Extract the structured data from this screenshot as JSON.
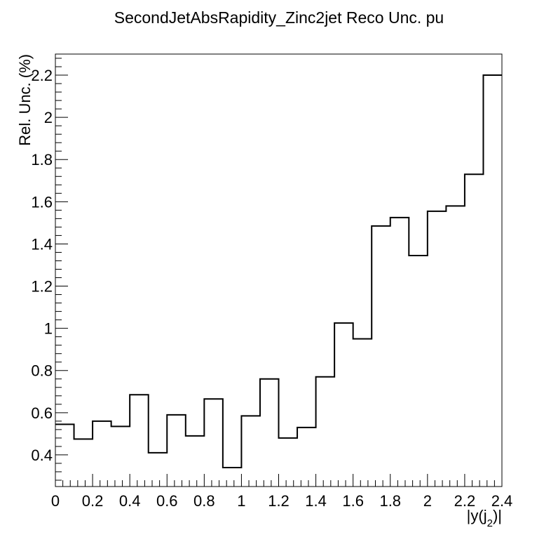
{
  "chart_data": {
    "type": "line",
    "title": "SecondJetAbsRapidity_Zinc2jet Reco Unc. pu",
    "xlabel": "|y(j_{2})|",
    "xlabel_parts": [
      "|y(j",
      "2",
      ")|"
    ],
    "ylabel": "Rel. Unc. (%)",
    "xlim": [
      0,
      2.4
    ],
    "ylim": [
      0.25,
      2.3
    ],
    "grid": false,
    "legend": "none",
    "line_color": "#000000",
    "bin_edges": [
      0,
      0.1,
      0.2,
      0.3,
      0.4,
      0.5,
      0.6,
      0.7,
      0.8,
      0.9,
      1.0,
      1.1,
      1.2,
      1.3,
      1.4,
      1.5,
      1.6,
      1.7,
      1.8,
      1.9,
      2.0,
      2.1,
      2.2,
      2.3,
      2.4
    ],
    "values": [
      0.545,
      0.475,
      0.56,
      0.535,
      0.685,
      0.41,
      0.59,
      0.49,
      0.665,
      0.34,
      0.585,
      0.76,
      0.48,
      0.53,
      0.77,
      1.025,
      0.95,
      1.485,
      1.525,
      1.345,
      1.555,
      1.58,
      1.73,
      2.2
    ],
    "x_ticks": [
      "0",
      "0.2",
      "0.4",
      "0.6",
      "0.8",
      "1",
      "1.2",
      "1.4",
      "1.6",
      "1.8",
      "2",
      "2.2",
      "2.4"
    ],
    "y_ticks": [
      "0.4",
      "0.6",
      "0.8",
      "1",
      "1.2",
      "1.4",
      "1.6",
      "1.8",
      "2",
      "2.2"
    ]
  }
}
